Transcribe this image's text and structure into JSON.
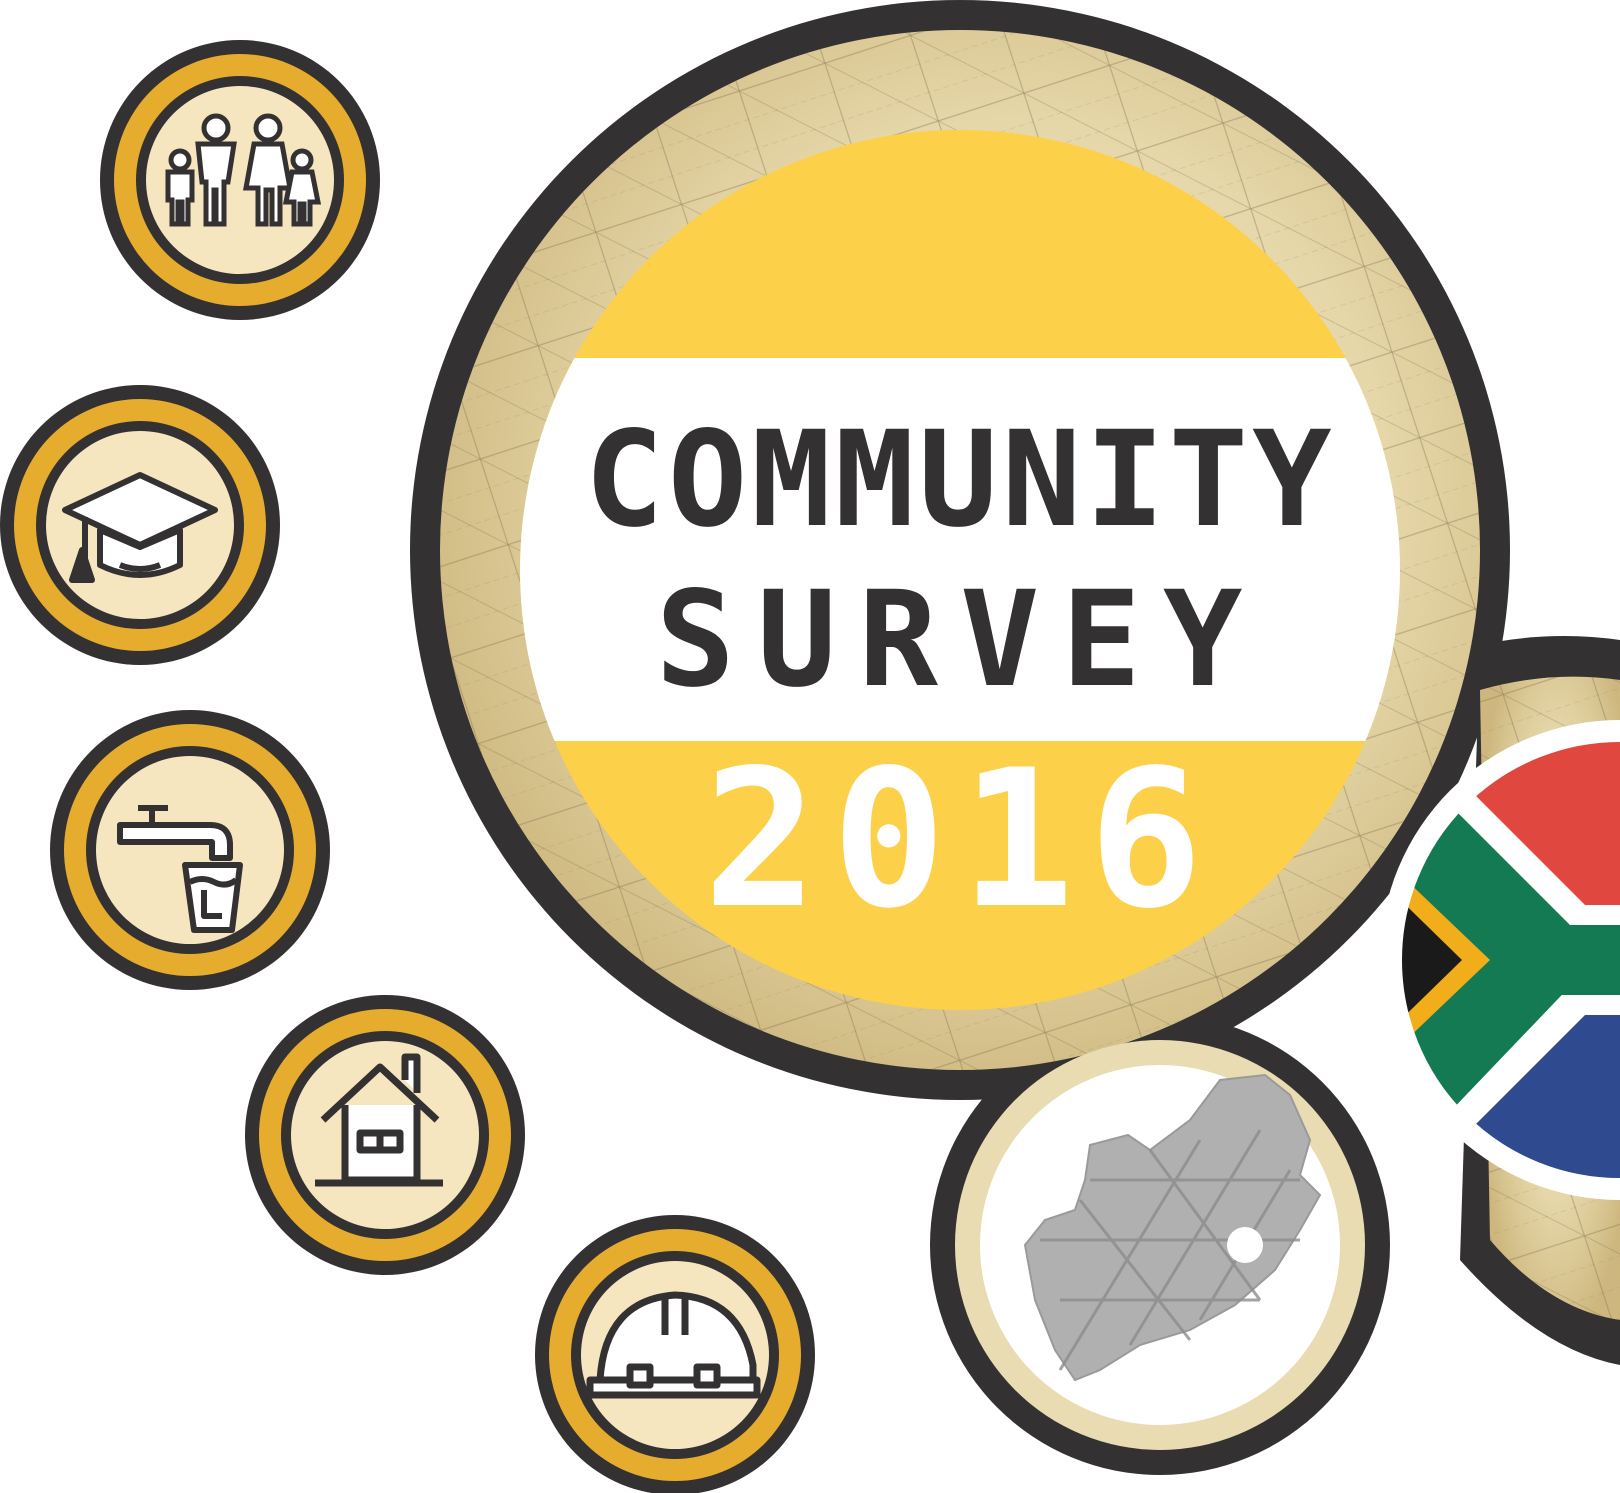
{
  "logo": {
    "title_line1": "COMMUNITY",
    "title_line2": "SURVEY",
    "year": "2016"
  },
  "colors": {
    "dark_ring": "#333132",
    "gold": "#e5ac2d",
    "yellow_band": "#fdd04a",
    "cream": "#f6e6bf",
    "map_grey": "#b0b0b0",
    "flag_red": "#e0473e",
    "flag_green": "#147a54",
    "flag_blue": "#2f4a8e",
    "flag_gold": "#f2ae1a"
  },
  "icons": [
    "family-icon",
    "graduation-cap-icon",
    "water-tap-icon",
    "house-icon",
    "hard-hat-icon"
  ]
}
